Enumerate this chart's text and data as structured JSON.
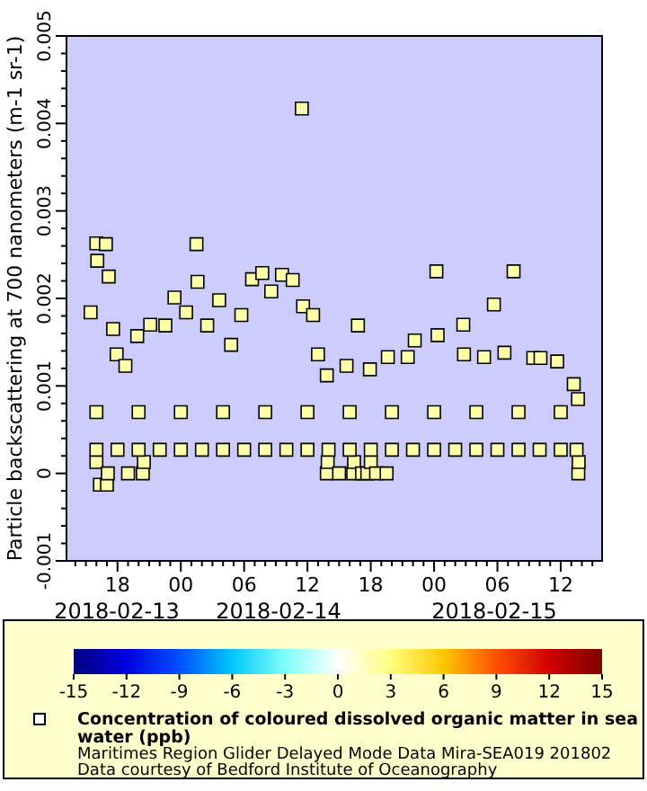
{
  "chart_data": {
    "type": "scatter",
    "ylabel": "Particle backscattering at 700 nanometers (m-1 sr-1)",
    "clabel": "Concentration of coloured dissolved organic matter in sea water (ppb)",
    "marker": "square",
    "x": [
      "2018-02-13T15:27",
      "2018-02-13T16:00",
      "2018-02-13T16:05",
      "2018-02-13T16:54",
      "2018-02-13T17:10",
      "2018-02-13T17:35",
      "2018-02-13T17:55",
      "2018-02-13T18:45",
      "2018-02-13T19:52",
      "2018-02-13T21:06",
      "2018-02-13T22:32",
      "2018-02-13T23:24",
      "2018-02-14T00:30",
      "2018-02-14T01:29",
      "2018-02-14T01:35",
      "2018-02-14T02:30",
      "2018-02-14T03:38",
      "2018-02-14T04:46",
      "2018-02-14T05:44",
      "2018-02-14T06:45",
      "2018-02-14T07:43",
      "2018-02-14T08:34",
      "2018-02-14T09:35",
      "2018-02-14T10:36",
      "2018-02-14T11:28",
      "2018-02-14T11:35",
      "2018-02-14T12:32",
      "2018-02-14T13:00",
      "2018-02-14T13:50",
      "2018-02-14T15:42",
      "2018-02-14T16:47",
      "2018-02-14T17:55",
      "2018-02-14T19:37",
      "2018-02-14T21:30",
      "2018-02-14T22:10",
      "2018-02-15T00:13",
      "2018-02-15T00:20",
      "2018-02-15T02:46",
      "2018-02-15T02:50",
      "2018-02-15T04:44",
      "2018-02-15T05:40",
      "2018-02-15T06:40",
      "2018-02-15T07:32",
      "2018-02-15T09:24",
      "2018-02-15T10:05",
      "2018-02-15T11:40",
      "2018-02-15T13:14",
      "2018-02-15T13:38",
      "2018-02-13T16:00",
      "2018-02-13T16:20",
      "2018-02-13T17:00",
      "2018-02-13T17:05",
      "2018-02-13T19:00",
      "2018-02-13T20:24",
      "2018-02-13T20:30",
      "2018-02-14T13:50",
      "2018-02-14T13:55",
      "2018-02-14T15:00",
      "2018-02-14T16:20",
      "2018-02-14T16:25",
      "2018-02-14T17:10",
      "2018-02-14T17:40",
      "2018-02-14T18:00",
      "2018-02-14T18:30",
      "2018-02-14T19:30",
      "2018-02-15T13:40",
      "2018-02-15T13:42",
      "2018-02-13T16:00",
      "2018-02-13T18:00",
      "2018-02-13T20:00",
      "2018-02-13T22:00",
      "2018-02-14T00:00",
      "2018-02-14T02:00",
      "2018-02-14T04:00",
      "2018-02-14T06:00",
      "2018-02-14T08:00",
      "2018-02-14T10:00",
      "2018-02-14T12:00",
      "2018-02-14T14:00",
      "2018-02-14T16:00",
      "2018-02-14T18:00",
      "2018-02-14T20:00",
      "2018-02-14T22:00",
      "2018-02-15T00:00",
      "2018-02-15T02:00",
      "2018-02-15T04:00",
      "2018-02-15T06:00",
      "2018-02-15T08:00",
      "2018-02-15T10:00",
      "2018-02-15T12:00",
      "2018-02-15T13:30",
      "2018-02-13T16:00",
      "2018-02-13T20:00",
      "2018-02-14T00:00",
      "2018-02-14T04:00",
      "2018-02-14T08:00",
      "2018-02-14T12:00",
      "2018-02-14T16:00",
      "2018-02-14T20:00",
      "2018-02-15T00:00",
      "2018-02-15T04:00",
      "2018-02-15T08:00",
      "2018-02-15T12:00"
    ],
    "values": [
      0.00184,
      0.00263,
      0.00243,
      0.00262,
      0.00225,
      0.00165,
      0.00136,
      0.00123,
      0.00157,
      0.0017,
      0.00169,
      0.00201,
      0.00184,
      0.00262,
      0.00219,
      0.00169,
      0.00198,
      0.00147,
      0.00181,
      0.00222,
      0.00229,
      0.00208,
      0.00227,
      0.00221,
      0.00417,
      0.00191,
      0.00181,
      0.00136,
      0.00112,
      0.00123,
      0.00169,
      0.00119,
      0.00133,
      0.00133,
      0.00152,
      0.00231,
      0.00158,
      0.0017,
      0.00136,
      0.00133,
      0.00193,
      0.00138,
      0.00231,
      0.00132,
      0.00132,
      0.00128,
      0.00102,
      0.00085,
      0.00013,
      -0.00013,
      -0.00013,
      0,
      0,
      0,
      0.00013,
      0,
      0.00013,
      0,
      0,
      0.00013,
      0,
      0,
      0.00013,
      0,
      0,
      0,
      0.00013,
      0.00027,
      0.00027,
      0.00027,
      0.00027,
      0.00027,
      0.00027,
      0.00027,
      0.00027,
      0.00027,
      0.00027,
      0.00027,
      0.00027,
      0.00027,
      0.00027,
      0.00027,
      0.00027,
      0.00027,
      0.00027,
      0.00027,
      0.00027,
      0.00027,
      0.00027,
      0.00027,
      0.00027,
      0.0007,
      0.0007,
      0.0007,
      0.0007,
      0.0007,
      0.0007,
      0.0007,
      0.0007,
      0.0007,
      0.0007,
      0.0007,
      0.0007
    ],
    "cvalues": [
      2,
      2,
      2,
      2,
      2,
      2,
      2,
      2,
      2,
      2,
      2,
      2,
      2,
      2,
      2,
      2,
      2,
      2,
      2,
      2,
      2,
      2,
      2,
      2,
      2,
      2,
      2,
      2,
      2,
      2,
      2,
      2,
      2,
      2,
      2,
      2,
      2,
      2,
      2,
      2,
      2,
      2,
      2,
      2,
      2,
      2,
      2,
      2,
      2,
      2,
      2,
      2,
      2,
      2,
      2,
      2,
      2,
      2,
      2,
      2,
      2,
      2,
      2,
      2,
      2,
      2,
      2,
      2,
      2,
      2,
      2,
      2,
      2,
      2,
      2,
      2,
      2,
      2,
      2,
      2,
      2,
      2,
      2,
      2,
      2,
      2,
      2,
      2,
      2,
      2,
      2,
      2,
      2,
      2,
      2,
      2,
      2,
      2,
      2,
      2,
      2,
      2,
      2
    ],
    "xlim": [
      "2018-02-13T13:10",
      "2018-02-15T15:55"
    ],
    "xticks": [
      {
        "value": "2018-02-13T14:00",
        "label": null
      },
      {
        "value": "2018-02-13T15:00",
        "label": null
      },
      {
        "value": "2018-02-13T16:00",
        "label": null
      },
      {
        "value": "2018-02-13T17:00",
        "label": null
      },
      {
        "value": "2018-02-13T18:00",
        "label": "18"
      },
      {
        "value": "2018-02-13T19:00",
        "label": null
      },
      {
        "value": "2018-02-13T20:00",
        "label": null
      },
      {
        "value": "2018-02-13T21:00",
        "label": null
      },
      {
        "value": "2018-02-13T22:00",
        "label": null
      },
      {
        "value": "2018-02-13T23:00",
        "label": null
      },
      {
        "value": "2018-02-14T00:00",
        "label": "00"
      },
      {
        "value": "2018-02-14T01:00",
        "label": null
      },
      {
        "value": "2018-02-14T02:00",
        "label": null
      },
      {
        "value": "2018-02-14T03:00",
        "label": null
      },
      {
        "value": "2018-02-14T04:00",
        "label": null
      },
      {
        "value": "2018-02-14T05:00",
        "label": null
      },
      {
        "value": "2018-02-14T06:00",
        "label": "06"
      },
      {
        "value": "2018-02-14T07:00",
        "label": null
      },
      {
        "value": "2018-02-14T08:00",
        "label": null
      },
      {
        "value": "2018-02-14T09:00",
        "label": null
      },
      {
        "value": "2018-02-14T10:00",
        "label": null
      },
      {
        "value": "2018-02-14T11:00",
        "label": null
      },
      {
        "value": "2018-02-14T12:00",
        "label": "12"
      },
      {
        "value": "2018-02-14T13:00",
        "label": null
      },
      {
        "value": "2018-02-14T14:00",
        "label": null
      },
      {
        "value": "2018-02-14T15:00",
        "label": null
      },
      {
        "value": "2018-02-14T16:00",
        "label": null
      },
      {
        "value": "2018-02-14T17:00",
        "label": null
      },
      {
        "value": "2018-02-14T18:00",
        "label": "18"
      },
      {
        "value": "2018-02-14T19:00",
        "label": null
      },
      {
        "value": "2018-02-14T20:00",
        "label": null
      },
      {
        "value": "2018-02-14T21:00",
        "label": null
      },
      {
        "value": "2018-02-14T22:00",
        "label": null
      },
      {
        "value": "2018-02-14T23:00",
        "label": null
      },
      {
        "value": "2018-02-15T00:00",
        "label": "00"
      },
      {
        "value": "2018-02-15T01:00",
        "label": null
      },
      {
        "value": "2018-02-15T02:00",
        "label": null
      },
      {
        "value": "2018-02-15T03:00",
        "label": null
      },
      {
        "value": "2018-02-15T04:00",
        "label": null
      },
      {
        "value": "2018-02-15T05:00",
        "label": null
      },
      {
        "value": "2018-02-15T06:00",
        "label": "06"
      },
      {
        "value": "2018-02-15T07:00",
        "label": null
      },
      {
        "value": "2018-02-15T08:00",
        "label": null
      },
      {
        "value": "2018-02-15T09:00",
        "label": null
      },
      {
        "value": "2018-02-15T10:00",
        "label": null
      },
      {
        "value": "2018-02-15T11:00",
        "label": null
      },
      {
        "value": "2018-02-15T12:00",
        "label": "12"
      },
      {
        "value": "2018-02-15T13:00",
        "label": null
      },
      {
        "value": "2018-02-15T14:00",
        "label": null
      },
      {
        "value": "2018-02-15T15:00",
        "label": null
      }
    ],
    "ylim": [
      -0.001,
      0.005
    ],
    "yticks": [
      -0.001,
      {
        "value": -0.0008,
        "label": null
      },
      {
        "value": -0.0006,
        "label": null
      },
      {
        "value": -0.0004,
        "label": null
      },
      {
        "value": -0.0002,
        "label": null
      },
      0,
      {
        "value": 0.0002,
        "label": null
      },
      {
        "value": 0.0004,
        "label": null
      },
      {
        "value": 0.0006,
        "label": null
      },
      {
        "value": 0.0008,
        "label": null
      },
      0.001,
      {
        "value": 0.0012,
        "label": null
      },
      {
        "value": 0.0014,
        "label": null
      },
      {
        "value": 0.0016,
        "label": null
      },
      {
        "value": 0.0018,
        "label": null
      },
      0.002,
      {
        "value": 0.0022,
        "label": null
      },
      {
        "value": 0.0024,
        "label": null
      },
      {
        "value": 0.0026,
        "label": null
      },
      {
        "value": 0.0028,
        "label": null
      },
      0.003,
      {
        "value": 0.0032,
        "label": null
      },
      {
        "value": 0.0034,
        "label": null
      },
      {
        "value": 0.0036,
        "label": null
      },
      {
        "value": 0.0038,
        "label": null
      },
      0.004,
      {
        "value": 0.0042,
        "label": null
      },
      {
        "value": 0.0044,
        "label": null
      },
      {
        "value": 0.0046,
        "label": null
      },
      {
        "value": 0.0048,
        "label": null
      },
      0.005
    ],
    "clim": [
      -15,
      15
    ],
    "cticks": [
      -15,
      -12,
      -9,
      -6,
      -3,
      0,
      3,
      6,
      9,
      12,
      15
    ],
    "annotations": [
      "2018-02-13",
      "2018-02-14",
      "2018-02-15",
      "Maritimes Region Glider Delayed Mode Data Mira-SEA019 201802",
      "Data courtesy of Bedford Institute of Oceanography"
    ]
  }
}
